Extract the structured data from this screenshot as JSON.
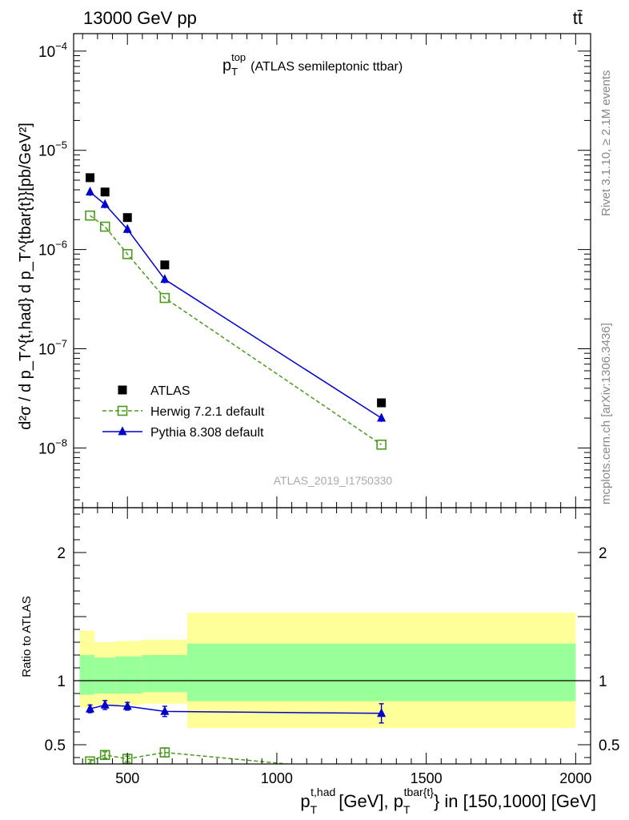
{
  "header": {
    "left_title": "13000 GeV pp",
    "right_title": "tt̄"
  },
  "side_labels": {
    "rivet": "Rivet 3.1.10, ≥ 2.1M events",
    "mcplots": "mcplots.cern.ch [arXiv:1306.3436]"
  },
  "plot_title": {
    "main": "p",
    "sub": "T",
    "sup": "top",
    "rest": "(ATLAS semileptonic ttbar)"
  },
  "watermark": "ATLAS_2019_I1750330",
  "ylabel_main": "d²σ / d p_T^{t,had} d p_T^{tbar{t}}[pb/GeV²]",
  "ylabel_ratio": "Ratio to ATLAS",
  "xlabel": {
    "p1": "p",
    "p1_sub": "T",
    "p1_sup": "t,had",
    "mid": "[GeV], p",
    "p2_sub": "T",
    "p2_sup": "tbar{t}",
    "end": "} in [150,1000] [GeV]"
  },
  "legend": [
    {
      "label": "ATLAS",
      "color": "#000000",
      "marker": "filled-square",
      "line": "none"
    },
    {
      "label": "Herwig 7.2.1 default",
      "color": "#4a9a1c",
      "marker": "open-square",
      "line": "dashed"
    },
    {
      "label": "Pythia 8.308 default",
      "color": "#0000cc",
      "marker": "filled-triangle",
      "line": "solid"
    }
  ],
  "chart_data": [
    {
      "type": "scatter",
      "panel": "main",
      "yscale": "log",
      "xlim": [
        320,
        2050
      ],
      "ylim": [
        2.5e-09,
        0.00015
      ],
      "y_ticks": [
        {
          "value": 1e-08,
          "mant": "10",
          "exp": "−8"
        },
        {
          "value": 1e-07,
          "mant": "10",
          "exp": "−7"
        },
        {
          "value": 1e-06,
          "mant": "10",
          "exp": "−6"
        },
        {
          "value": 1e-05,
          "mant": "10",
          "exp": "−5"
        },
        {
          "value": 0.0001,
          "mant": "10",
          "exp": "−4"
        }
      ],
      "x": [
        375,
        425,
        500,
        625,
        1350
      ],
      "series": [
        {
          "name": "ATLAS",
          "values": [
            5.3e-06,
            3.8e-06,
            2.1e-06,
            7e-07,
            2.85e-08
          ]
        },
        {
          "name": "Herwig 7.2.1 default",
          "values": [
            2.2e-06,
            1.7e-06,
            9e-07,
            3.25e-07,
            1.08e-08
          ]
        },
        {
          "name": "Pythia 8.308 default",
          "values": [
            3.8e-06,
            2.85e-06,
            1.6e-06,
            5e-07,
            2e-08
          ]
        }
      ]
    },
    {
      "type": "scatter",
      "panel": "ratio",
      "xlim": [
        320,
        2050
      ],
      "ylim": [
        0.35,
        2.35
      ],
      "y_ticks": [
        0.5,
        1,
        2
      ],
      "x_ticks": [
        500,
        1000,
        1500,
        2000
      ],
      "bins": [
        {
          "lo": 340,
          "hi": 390,
          "band_outer": [
            0.79,
            1.39
          ],
          "band_inner": [
            0.89,
            1.2
          ]
        },
        {
          "lo": 390,
          "hi": 460,
          "band_outer": [
            0.81,
            1.3
          ],
          "band_inner": [
            0.9,
            1.18
          ]
        },
        {
          "lo": 460,
          "hi": 550,
          "band_outer": [
            0.81,
            1.31
          ],
          "band_inner": [
            0.9,
            1.19
          ]
        },
        {
          "lo": 550,
          "hi": 700,
          "band_outer": [
            0.82,
            1.32
          ],
          "band_inner": [
            0.91,
            1.2
          ]
        },
        {
          "lo": 700,
          "hi": 2000,
          "band_outer": [
            0.63,
            1.53
          ],
          "band_inner": [
            0.84,
            1.29
          ]
        }
      ],
      "x": [
        375,
        425,
        500,
        625,
        1350
      ],
      "series": [
        {
          "name": "Pythia 8.308 default",
          "values": [
            0.78,
            0.81,
            0.8,
            0.76,
            0.745
          ],
          "errors": [
            0.03,
            0.035,
            0.03,
            0.04,
            0.075
          ]
        },
        {
          "name": "Herwig 7.2.1 default",
          "values": [
            0.37,
            0.42,
            0.39,
            0.44,
            0.28
          ],
          "errors": [
            0.015,
            0.025,
            0.02,
            0.035,
            0.03
          ]
        }
      ]
    }
  ]
}
